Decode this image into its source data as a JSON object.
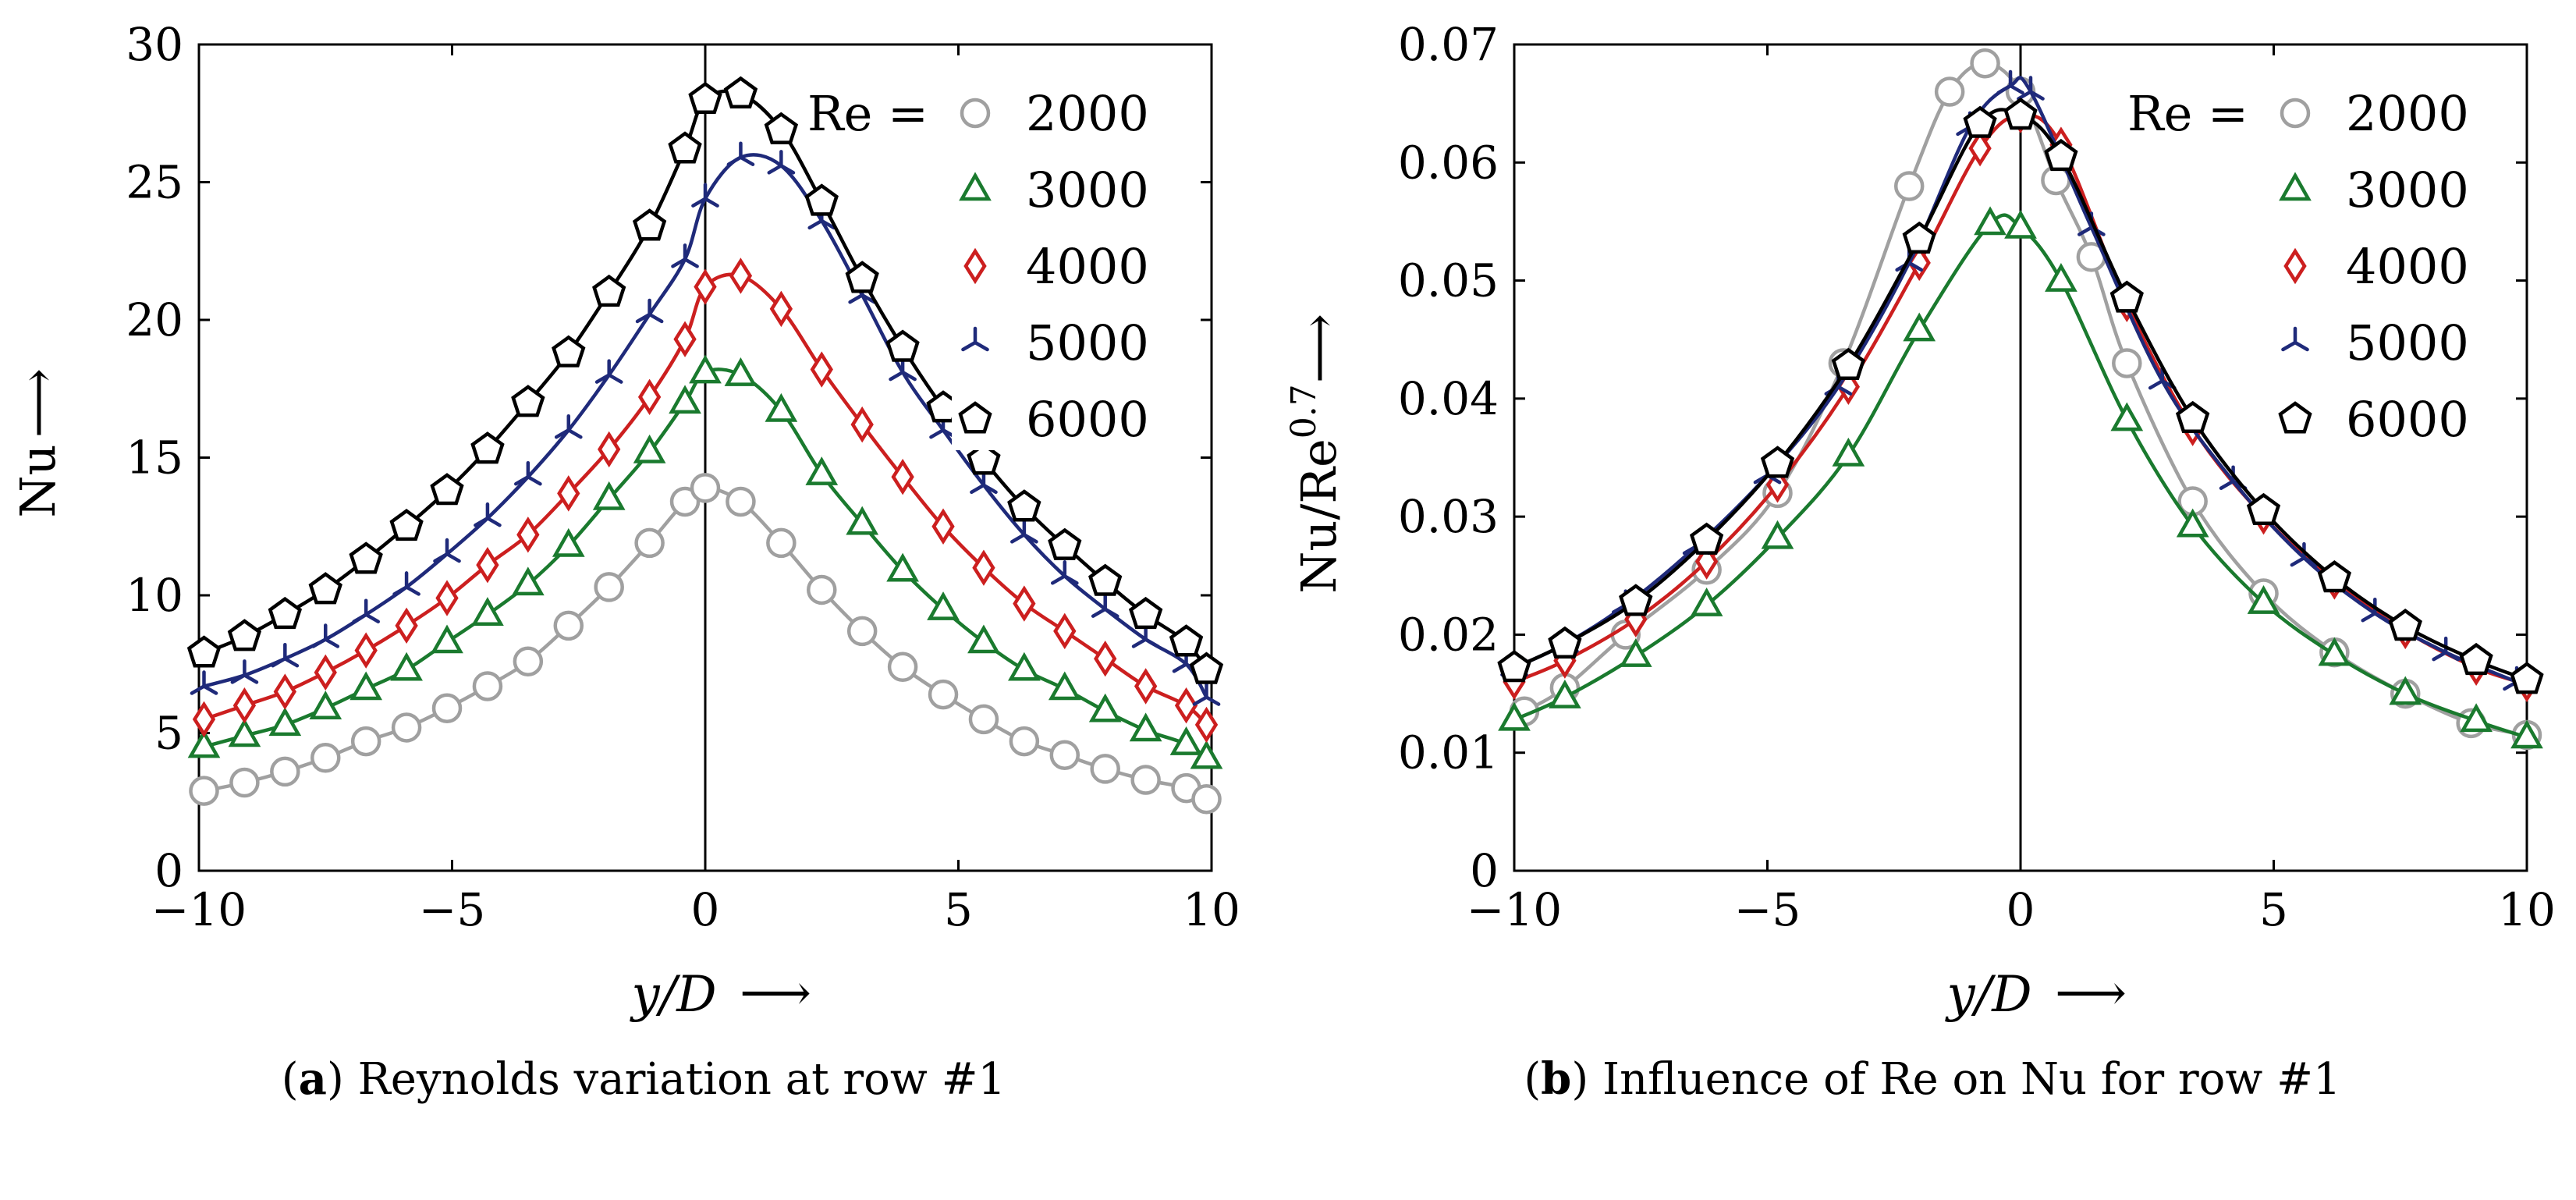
{
  "chart_data": [
    {
      "type": "line",
      "panel_label": "a",
      "caption": "Reynolds variation at row #1",
      "xlabel": "y/D",
      "ylabel": "Nu",
      "xlim": [
        -10,
        10
      ],
      "ylim": [
        0,
        30
      ],
      "xticks": [
        -10,
        -5,
        0,
        5,
        10
      ],
      "yticks": [
        0,
        5,
        10,
        15,
        20,
        25,
        30
      ],
      "vertical_line_at": 0,
      "legend_title": "Re =",
      "legend_position": "top-right",
      "series": [
        {
          "name": "2000",
          "color": "#a0a0a0",
          "marker": "circle",
          "x": [
            -9.9,
            -9.1,
            -8.3,
            -7.5,
            -6.7,
            -5.9,
            -5.1,
            -4.3,
            -3.5,
            -2.7,
            -1.9,
            -1.1,
            -0.4,
            0.0,
            0.7,
            1.5,
            2.3,
            3.1,
            3.9,
            4.7,
            5.5,
            6.3,
            7.1,
            7.9,
            8.7,
            9.5,
            9.9
          ],
          "y": [
            2.9,
            3.2,
            3.6,
            4.1,
            4.7,
            5.2,
            5.9,
            6.7,
            7.6,
            8.9,
            10.3,
            11.9,
            13.4,
            13.9,
            13.4,
            11.9,
            10.2,
            8.7,
            7.4,
            6.4,
            5.5,
            4.7,
            4.2,
            3.7,
            3.3,
            3.0,
            2.6
          ]
        },
        {
          "name": "3000",
          "color": "#1a7a2e",
          "marker": "triangle",
          "x": [
            -9.9,
            -9.1,
            -8.3,
            -7.5,
            -6.7,
            -5.9,
            -5.1,
            -4.3,
            -3.5,
            -2.7,
            -1.9,
            -1.1,
            -0.4,
            0.0,
            0.7,
            1.5,
            2.3,
            3.1,
            3.9,
            4.7,
            5.5,
            6.3,
            7.1,
            7.9,
            8.7,
            9.5,
            9.9
          ],
          "y": [
            4.5,
            4.9,
            5.3,
            5.9,
            6.6,
            7.3,
            8.3,
            9.3,
            10.4,
            11.8,
            13.5,
            15.2,
            17.0,
            18.1,
            18.0,
            16.7,
            14.4,
            12.6,
            10.9,
            9.5,
            8.3,
            7.3,
            6.6,
            5.8,
            5.1,
            4.6,
            4.1
          ]
        },
        {
          "name": "4000",
          "color": "#cc1f1f",
          "marker": "diamond",
          "x": [
            -9.9,
            -9.1,
            -8.3,
            -7.5,
            -6.7,
            -5.9,
            -5.1,
            -4.3,
            -3.5,
            -2.7,
            -1.9,
            -1.1,
            -0.4,
            0.0,
            0.7,
            1.5,
            2.3,
            3.1,
            3.9,
            4.7,
            5.5,
            6.3,
            7.1,
            7.9,
            8.7,
            9.5,
            9.9
          ],
          "y": [
            5.5,
            6.0,
            6.5,
            7.2,
            8.0,
            8.9,
            9.9,
            11.1,
            12.2,
            13.7,
            15.3,
            17.2,
            19.3,
            21.2,
            21.6,
            20.4,
            18.2,
            16.2,
            14.3,
            12.5,
            11.0,
            9.7,
            8.7,
            7.7,
            6.7,
            6.0,
            5.3
          ]
        },
        {
          "name": "5000",
          "color": "#1f2a7a",
          "marker": "tri-cross",
          "x": [
            -9.9,
            -9.1,
            -8.3,
            -7.5,
            -6.7,
            -5.9,
            -5.1,
            -4.3,
            -3.5,
            -2.7,
            -1.9,
            -1.1,
            -0.4,
            0.0,
            0.7,
            1.5,
            2.3,
            3.1,
            3.9,
            4.7,
            5.5,
            6.3,
            7.1,
            7.9,
            8.7,
            9.5,
            9.9
          ],
          "y": [
            6.7,
            7.1,
            7.7,
            8.4,
            9.3,
            10.3,
            11.5,
            12.8,
            14.3,
            16.0,
            18.0,
            20.2,
            22.2,
            24.4,
            25.9,
            25.6,
            23.6,
            20.9,
            18.1,
            16.0,
            14.0,
            12.2,
            10.7,
            9.5,
            8.4,
            7.5,
            6.3
          ]
        },
        {
          "name": "6000",
          "color": "#000000",
          "marker": "pentagon",
          "x": [
            -9.9,
            -9.1,
            -8.3,
            -7.5,
            -6.7,
            -5.9,
            -5.1,
            -4.3,
            -3.5,
            -2.7,
            -1.9,
            -1.1,
            -0.4,
            0.0,
            0.7,
            1.5,
            2.3,
            3.1,
            3.9,
            4.7,
            5.5,
            6.3,
            7.1,
            7.9,
            8.7,
            9.5,
            9.9
          ],
          "y": [
            7.9,
            8.5,
            9.3,
            10.2,
            11.3,
            12.5,
            13.8,
            15.3,
            17.0,
            18.8,
            21.0,
            23.4,
            26.2,
            28.0,
            28.2,
            26.9,
            24.3,
            21.5,
            19.0,
            16.8,
            14.9,
            13.2,
            11.8,
            10.5,
            9.3,
            8.3,
            7.3
          ]
        }
      ]
    },
    {
      "type": "line",
      "panel_label": "b",
      "caption": "Influence of Re on Nu for row #1",
      "xlabel": "y/D",
      "ylabel": "Nu/Re^0.7",
      "xlim": [
        -10,
        10
      ],
      "ylim": [
        0,
        0.07
      ],
      "xticks": [
        -10,
        -5,
        0,
        5,
        10
      ],
      "yticks": [
        0,
        0.01,
        0.02,
        0.03,
        0.04,
        0.05,
        0.06,
        0.07
      ],
      "vertical_line_at": 0,
      "legend_title": "Re =",
      "legend_position": "top-right",
      "series": [
        {
          "name": "2000",
          "color": "#a0a0a0",
          "marker": "circle",
          "x": [
            -9.8,
            -9.0,
            -7.8,
            -6.2,
            -4.8,
            -3.5,
            -2.2,
            -1.4,
            -0.7,
            0.0,
            0.7,
            1.4,
            2.1,
            3.4,
            4.8,
            6.2,
            7.6,
            8.9,
            10.0
          ],
          "y": [
            0.0135,
            0.0155,
            0.02,
            0.0255,
            0.032,
            0.043,
            0.058,
            0.066,
            0.0684,
            0.066,
            0.0585,
            0.052,
            0.043,
            0.0313,
            0.0235,
            0.0185,
            0.015,
            0.0125,
            0.0115
          ]
        },
        {
          "name": "3000",
          "color": "#1a7a2e",
          "marker": "triangle",
          "x": [
            -10.0,
            -9.0,
            -7.6,
            -6.2,
            -4.8,
            -3.4,
            -2.0,
            -0.6,
            0.0,
            0.8,
            2.1,
            3.4,
            4.8,
            6.2,
            7.6,
            9.0,
            10.0
          ],
          "y": [
            0.0128,
            0.0147,
            0.0182,
            0.0225,
            0.0282,
            0.0352,
            0.0458,
            0.0548,
            0.0545,
            0.05,
            0.0382,
            0.0292,
            0.0227,
            0.0183,
            0.015,
            0.0127,
            0.0113
          ]
        },
        {
          "name": "4000",
          "color": "#cc1f1f",
          "marker": "diamond",
          "x": [
            -10.0,
            -9.0,
            -7.6,
            -6.2,
            -4.8,
            -3.4,
            -2.0,
            -0.8,
            0.0,
            0.8,
            2.1,
            3.4,
            4.8,
            6.2,
            7.6,
            9.0,
            10.0
          ],
          "y": [
            0.016,
            0.0178,
            0.0213,
            0.0262,
            0.0327,
            0.041,
            0.0515,
            0.0612,
            0.064,
            0.0615,
            0.048,
            0.0375,
            0.03,
            0.0245,
            0.0203,
            0.0172,
            0.0158
          ]
        },
        {
          "name": "5000",
          "color": "#1f2a7a",
          "marker": "tri-cross",
          "x": [
            -10.0,
            -9.0,
            -7.8,
            -6.4,
            -5.0,
            -3.6,
            -2.2,
            -1.0,
            -0.2,
            0.2,
            1.4,
            2.8,
            4.2,
            5.6,
            7.0,
            8.4,
            9.8
          ],
          "y": [
            0.0172,
            0.0192,
            0.0225,
            0.0275,
            0.0335,
            0.041,
            0.0515,
            0.063,
            0.0665,
            0.066,
            0.0545,
            0.0415,
            0.033,
            0.0265,
            0.0218,
            0.0185,
            0.016
          ]
        },
        {
          "name": "6000",
          "color": "#000000",
          "marker": "pentagon",
          "x": [
            -10.0,
            -9.0,
            -7.6,
            -6.2,
            -4.8,
            -3.4,
            -2.0,
            -0.8,
            0.0,
            0.8,
            2.1,
            3.4,
            4.8,
            6.2,
            7.6,
            9.0,
            10.0
          ],
          "y": [
            0.0172,
            0.0192,
            0.0228,
            0.028,
            0.0345,
            0.0428,
            0.0535,
            0.0633,
            0.064,
            0.0605,
            0.0485,
            0.0383,
            0.0305,
            0.0248,
            0.0207,
            0.0178,
            0.0162
          ]
        }
      ]
    }
  ]
}
